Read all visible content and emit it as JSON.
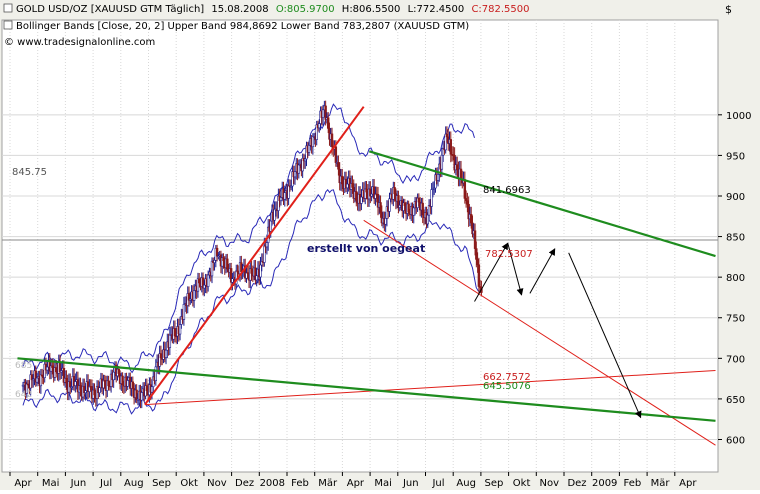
{
  "header": {
    "gold_title": "GOLD USD/OZ [XAUUSD GTM  Täglich]",
    "date": "15.08.2008",
    "open": "O:805.9700",
    "high": "H:806.5500",
    "low": "L:772.4500",
    "close": "C:782.5500",
    "bollinger": "Bollinger Bands [Close, 20, 2] Upper Band 984,8692 Lower Band 783,2807 (XAUUSD GTM)",
    "copyright": "© www.tradesignalonline.com",
    "dollar_symbol": "$"
  },
  "annotations": {
    "level_label": "845.75",
    "author": "erstellt von oegeat",
    "level_841": "841.6963",
    "level_782": "782.5307",
    "level_662": "662.7572",
    "level_645": "645.5076",
    "left_faded_1": "685",
    "left_faded_2": "642"
  },
  "colors": {
    "up_candle": "#1a1a8c",
    "down_candle": "#8b1a1a",
    "bollinger": "#2a2ab8",
    "red_line": "#e0201a",
    "green_line": "#1e8c1e",
    "arrow": "#000000",
    "grid": "#d8d8d8"
  },
  "chart_data": {
    "type": "line",
    "title": "GOLD USD/OZ [XAUUSD GTM  Täglich]",
    "xlabel": "",
    "ylabel": "$",
    "ylim": [
      588,
      1030
    ],
    "yticks": [
      600,
      650,
      700,
      750,
      800,
      850,
      900,
      950,
      1000
    ],
    "x_tick_labels": [
      "Apr",
      "Mai",
      "Jun",
      "Jul",
      "Aug",
      "Sep",
      "Okt",
      "Nov",
      "Dez",
      "2008",
      "Feb",
      "Mär",
      "Apr",
      "Mai",
      "Jun",
      "Jul",
      "Aug",
      "Sep",
      "Okt",
      "Nov",
      "Dez",
      "2009",
      "Feb",
      "Mär",
      "Apr"
    ],
    "x_tick_month_index": [
      0,
      1,
      2,
      3,
      4,
      5,
      6,
      7,
      8,
      9,
      10,
      11,
      12,
      13,
      14,
      15,
      16,
      17,
      18,
      19,
      20,
      21,
      22,
      23,
      24
    ],
    "price_series": {
      "name": "GOLD USD/OZ",
      "month_index": [
        0,
        0.5,
        1,
        1.3,
        1.6,
        2,
        2.5,
        3,
        3.3,
        3.7,
        4,
        4.3,
        4.7,
        5,
        5.3,
        5.7,
        6,
        6.4,
        6.8,
        7,
        7.3,
        7.6,
        8,
        8.4,
        8.8,
        9,
        9.4,
        9.8,
        10,
        10.3,
        10.6,
        10.9,
        11.1,
        11.4,
        11.8,
        12.2,
        12.6,
        13,
        13.4,
        13.8,
        14.2,
        14.6,
        15,
        15.3,
        15.5,
        15.7,
        15.9,
        16.1,
        16.3,
        16.45,
        16.55
      ],
      "values": [
        667,
        675,
        690,
        685,
        670,
        665,
        658,
        668,
        682,
        672,
        660,
        652,
        672,
        705,
        720,
        745,
        778,
        790,
        805,
        835,
        812,
        800,
        810,
        798,
        840,
        880,
        900,
        925,
        940,
        955,
        985,
        1005,
        975,
        925,
        910,
        895,
        910,
        870,
        905,
        880,
        890,
        875,
        935,
        970,
        955,
        925,
        915,
        880,
        840,
        800,
        782
      ]
    },
    "bollinger_upper": {
      "name": "Upper Band",
      "month_index": [
        0,
        1,
        2,
        3,
        4,
        5,
        6,
        7,
        8,
        9,
        10,
        11,
        11.5,
        12,
        13,
        14,
        15,
        15.5,
        16,
        16.3
      ],
      "values": [
        690,
        700,
        705,
        700,
        690,
        720,
        810,
        845,
        845,
        885,
        955,
        1000,
        1010,
        960,
        945,
        915,
        960,
        985,
        982,
        975
      ]
    },
    "bollinger_lower": {
      "name": "Lower Band",
      "month_index": [
        0,
        1,
        2,
        3,
        4,
        5,
        6,
        7,
        8,
        9,
        10,
        11,
        12,
        13,
        14,
        15,
        16,
        16.5
      ],
      "values": [
        642,
        655,
        650,
        640,
        640,
        645,
        720,
        770,
        785,
        795,
        870,
        910,
        855,
        848,
        845,
        870,
        830,
        783
      ]
    },
    "lines": [
      {
        "color": "red",
        "from": [
          4.4,
          643
        ],
        "to": [
          12.3,
          1010
        ]
      },
      {
        "color": "red",
        "from": [
          4.4,
          643
        ],
        "to": [
          25.0,
          685
        ]
      },
      {
        "color": "red",
        "from": [
          12.3,
          870
        ],
        "to": [
          25.0,
          593
        ]
      },
      {
        "color": "green",
        "from": [
          -0.2,
          700
        ],
        "to": [
          25.0,
          623
        ]
      },
      {
        "color": "green",
        "from": [
          12.5,
          955
        ],
        "to": [
          25.0,
          826
        ]
      }
    ],
    "horizontal_levels": [
      845.75
    ],
    "forecast_arrows": [
      {
        "from": [
          16.3,
          770
        ],
        "to": [
          17.5,
          842
        ]
      },
      {
        "from": [
          17.5,
          842
        ],
        "to": [
          18.0,
          778
        ]
      },
      {
        "from": [
          18.3,
          780
        ],
        "to": [
          19.2,
          835
        ]
      },
      {
        "from": [
          19.7,
          830
        ],
        "to": [
          22.3,
          627
        ]
      }
    ]
  }
}
